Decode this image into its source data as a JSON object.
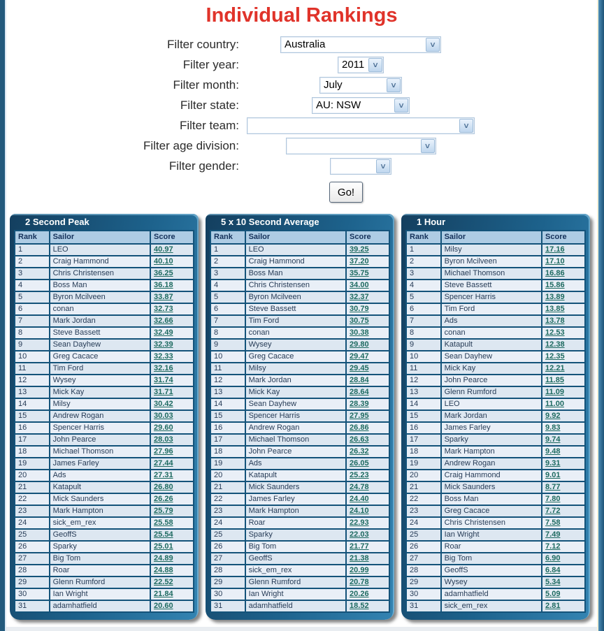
{
  "page": {
    "title": "Individual Rankings"
  },
  "colors": {
    "title_red": "#e0332a",
    "panel_navy": "#143f5f",
    "panel_teal": "#1d628c",
    "table_header_bg": "#aecce4",
    "row_bg_odd": "#dde7f1",
    "row_bg_even": "#e9eff7",
    "score_link": "#1d6a60",
    "cell_border": "#14537a"
  },
  "icons": {
    "dropdown_arrow": "˅"
  },
  "filters": [
    {
      "label": "Filter country:",
      "value": "Australia"
    },
    {
      "label": "Filter year:",
      "value": "2011"
    },
    {
      "label": "Filter month:",
      "value": "July"
    },
    {
      "label": "Filter state:",
      "value": "AU: NSW"
    },
    {
      "label": "Filter team:",
      "value": ""
    },
    {
      "label": "Filter age division:",
      "value": ""
    },
    {
      "label": "Filter gender:",
      "value": ""
    }
  ],
  "go_button_label": "Go!",
  "columns": [
    "Rank",
    "Sailor",
    "Score"
  ],
  "chart_data": [
    {
      "type": "table",
      "title": "2 Second Peak",
      "columns": [
        "Rank",
        "Sailor",
        "Score"
      ],
      "rows": [
        [
          1,
          "LEO",
          "40.97"
        ],
        [
          2,
          "Craig Hammond",
          "40.10"
        ],
        [
          3,
          "Chris Christensen",
          "36.25"
        ],
        [
          4,
          "Boss Man",
          "36.18"
        ],
        [
          5,
          "Byron Mcilveen",
          "33.87"
        ],
        [
          6,
          "conan",
          "32.73"
        ],
        [
          7,
          "Mark Jordan",
          "32.66"
        ],
        [
          8,
          "Steve Bassett",
          "32.49"
        ],
        [
          9,
          "Sean Dayhew",
          "32.39"
        ],
        [
          10,
          "Greg Cacace",
          "32.33"
        ],
        [
          11,
          "Tim Ford",
          "32.16"
        ],
        [
          12,
          "Wysey",
          "31.74"
        ],
        [
          13,
          "Mick Kay",
          "31.71"
        ],
        [
          14,
          "Milsy",
          "30.42"
        ],
        [
          15,
          "Andrew Rogan",
          "30.03"
        ],
        [
          16,
          "Spencer Harris",
          "29.60"
        ],
        [
          17,
          "John Pearce",
          "28.03"
        ],
        [
          18,
          "Michael Thomson",
          "27.96"
        ],
        [
          19,
          "James Farley",
          "27.44"
        ],
        [
          20,
          "Ads",
          "27.31"
        ],
        [
          21,
          "Katapult",
          "26.80"
        ],
        [
          22,
          "Mick Saunders",
          "26.26"
        ],
        [
          23,
          "Mark Hampton",
          "25.79"
        ],
        [
          24,
          "sick_em_rex",
          "25.58"
        ],
        [
          25,
          "GeoffS",
          "25.54"
        ],
        [
          26,
          "Sparky",
          "25.01"
        ],
        [
          27,
          "Big Tom",
          "24.89"
        ],
        [
          28,
          "Roar",
          "24.88"
        ],
        [
          29,
          "Glenn Rumford",
          "22.52"
        ],
        [
          30,
          "Ian Wright",
          "21.84"
        ],
        [
          31,
          "adamhatfield",
          "20.60"
        ]
      ]
    },
    {
      "type": "table",
      "title": "5 x 10 Second Average",
      "columns": [
        "Rank",
        "Sailor",
        "Score"
      ],
      "rows": [
        [
          1,
          "LEO",
          "39.25"
        ],
        [
          2,
          "Craig Hammond",
          "37.20"
        ],
        [
          3,
          "Boss Man",
          "35.75"
        ],
        [
          4,
          "Chris Christensen",
          "34.00"
        ],
        [
          5,
          "Byron Mcilveen",
          "32.37"
        ],
        [
          6,
          "Steve Bassett",
          "30.79"
        ],
        [
          7,
          "Tim Ford",
          "30.75"
        ],
        [
          8,
          "conan",
          "30.38"
        ],
        [
          9,
          "Wysey",
          "29.80"
        ],
        [
          10,
          "Greg Cacace",
          "29.47"
        ],
        [
          11,
          "Milsy",
          "29.45"
        ],
        [
          12,
          "Mark Jordan",
          "28.84"
        ],
        [
          13,
          "Mick Kay",
          "28.64"
        ],
        [
          14,
          "Sean Dayhew",
          "28.39"
        ],
        [
          15,
          "Spencer Harris",
          "27.95"
        ],
        [
          16,
          "Andrew Rogan",
          "26.86"
        ],
        [
          17,
          "Michael Thomson",
          "26.63"
        ],
        [
          18,
          "John Pearce",
          "26.32"
        ],
        [
          19,
          "Ads",
          "26.05"
        ],
        [
          20,
          "Katapult",
          "25.23"
        ],
        [
          21,
          "Mick Saunders",
          "24.78"
        ],
        [
          22,
          "James Farley",
          "24.40"
        ],
        [
          23,
          "Mark Hampton",
          "24.10"
        ],
        [
          24,
          "Roar",
          "22.93"
        ],
        [
          25,
          "Sparky",
          "22.03"
        ],
        [
          26,
          "Big Tom",
          "21.77"
        ],
        [
          27,
          "GeoffS",
          "21.38"
        ],
        [
          28,
          "sick_em_rex",
          "20.99"
        ],
        [
          29,
          "Glenn Rumford",
          "20.78"
        ],
        [
          30,
          "Ian Wright",
          "20.26"
        ],
        [
          31,
          "adamhatfield",
          "18.52"
        ]
      ]
    },
    {
      "type": "table",
      "title": "1 Hour",
      "columns": [
        "Rank",
        "Sailor",
        "Score"
      ],
      "rows": [
        [
          1,
          "Milsy",
          "17.16"
        ],
        [
          2,
          "Byron Mcilveen",
          "17.10"
        ],
        [
          3,
          "Michael Thomson",
          "16.86"
        ],
        [
          4,
          "Steve Bassett",
          "15.86"
        ],
        [
          5,
          "Spencer Harris",
          "13.89"
        ],
        [
          6,
          "Tim Ford",
          "13.85"
        ],
        [
          7,
          "Ads",
          "13.78"
        ],
        [
          8,
          "conan",
          "12.53"
        ],
        [
          9,
          "Katapult",
          "12.38"
        ],
        [
          10,
          "Sean Dayhew",
          "12.35"
        ],
        [
          11,
          "Mick Kay",
          "12.21"
        ],
        [
          12,
          "John Pearce",
          "11.85"
        ],
        [
          13,
          "Glenn Rumford",
          "11.09"
        ],
        [
          14,
          "LEO",
          "11.00"
        ],
        [
          15,
          "Mark Jordan",
          "9.92"
        ],
        [
          16,
          "James Farley",
          "9.83"
        ],
        [
          17,
          "Sparky",
          "9.74"
        ],
        [
          18,
          "Mark Hampton",
          "9.48"
        ],
        [
          19,
          "Andrew Rogan",
          "9.31"
        ],
        [
          20,
          "Craig Hammond",
          "9.01"
        ],
        [
          21,
          "Mick Saunders",
          "8.77"
        ],
        [
          22,
          "Boss Man",
          "7.80"
        ],
        [
          23,
          "Greg Cacace",
          "7.72"
        ],
        [
          24,
          "Chris Christensen",
          "7.58"
        ],
        [
          25,
          "Ian Wright",
          "7.49"
        ],
        [
          26,
          "Roar",
          "7.12"
        ],
        [
          27,
          "Big Tom",
          "6.90"
        ],
        [
          28,
          "GeoffS",
          "6.84"
        ],
        [
          29,
          "Wysey",
          "5.34"
        ],
        [
          30,
          "adamhatfield",
          "5.09"
        ],
        [
          31,
          "sick_em_rex",
          "2.81"
        ]
      ]
    }
  ]
}
